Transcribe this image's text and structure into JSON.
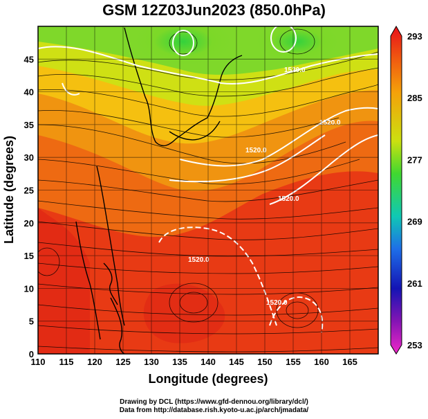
{
  "title": "GSM 12Z03Jun2023 (850.0hPa)",
  "xlabel": "Longitude (degrees)",
  "ylabel": "Latitude  (degrees)",
  "credits": {
    "line1": "Drawing by DCL (https://www.gfd-dennou.org/library/dcl/)",
    "line2": "Data from http://database.rish.kyoto-u.ac.jp/arch/jmadata/"
  },
  "map": {
    "lon_range": [
      110,
      170
    ],
    "lat_range": [
      0,
      50
    ],
    "x_ticks": [
      "110",
      "115",
      "120",
      "125",
      "130",
      "135",
      "140",
      "145",
      "150",
      "155",
      "160",
      "165"
    ],
    "y_ticks": [
      "0",
      "5",
      "10",
      "15",
      "20",
      "25",
      "30",
      "35",
      "40",
      "45"
    ],
    "grid": true,
    "field": "temperature (shaded), geopotential height (white contours), wind streamlines (black)"
  },
  "colorbar": {
    "ticks": [
      "293",
      "285",
      "277",
      "269",
      "261",
      "253"
    ],
    "range": [
      253,
      293
    ],
    "colors": [
      "#e8101a",
      "#f05a10",
      "#f5a00a",
      "#e6d21a",
      "#58dc28",
      "#10c8b4",
      "#1e6ee8",
      "#1414b4",
      "#b414b4",
      "#f028c8"
    ]
  },
  "contour_labels": [
    "1520.0",
    "1520.0",
    "1520.0",
    "1520.0",
    "1520.0",
    "1520.0"
  ]
}
